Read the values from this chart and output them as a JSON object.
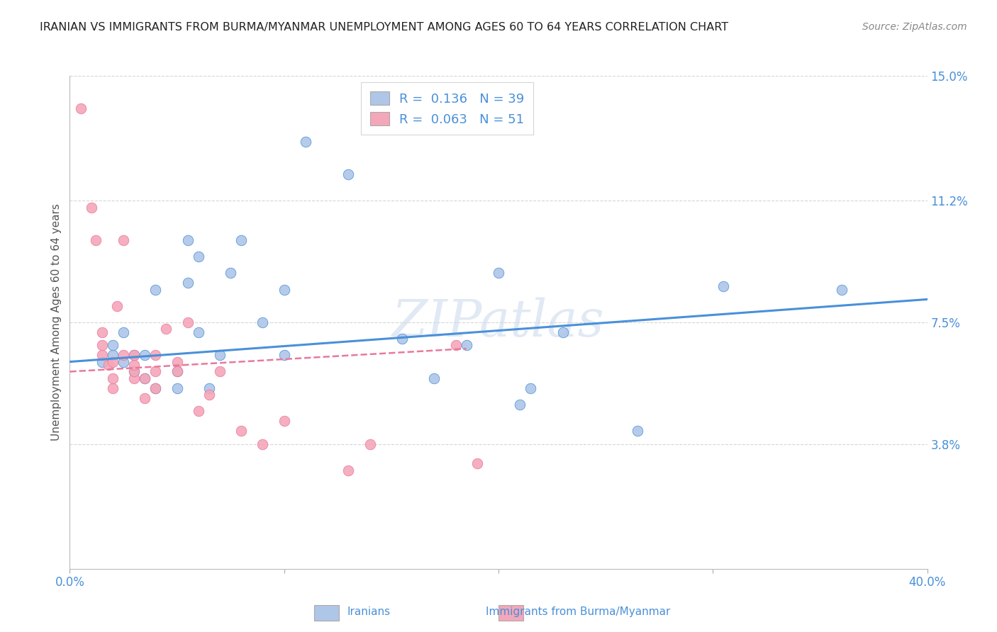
{
  "title": "IRANIAN VS IMMIGRANTS FROM BURMA/MYANMAR UNEMPLOYMENT AMONG AGES 60 TO 64 YEARS CORRELATION CHART",
  "source": "Source: ZipAtlas.com",
  "ylabel": "Unemployment Among Ages 60 to 64 years",
  "xlim": [
    0.0,
    0.4
  ],
  "ylim": [
    0.0,
    0.15
  ],
  "right_ytick_vals": [
    0.0,
    0.038,
    0.075,
    0.112,
    0.15
  ],
  "right_ytick_labels": [
    "",
    "3.8%",
    "7.5%",
    "11.2%",
    "15.0%"
  ],
  "xtick_vals": [
    0.0,
    0.1,
    0.2,
    0.3,
    0.4
  ],
  "xtick_labels": [
    "0.0%",
    "",
    "",
    "",
    "40.0%"
  ],
  "legend_R_blue": "0.136",
  "legend_N_blue": "39",
  "legend_R_pink": "0.063",
  "legend_N_pink": "51",
  "color_blue": "#aec6e8",
  "color_pink": "#f4a7b9",
  "line_blue": "#4a90d9",
  "line_pink": "#e8799a",
  "blue_scatter_x": [
    0.015,
    0.02,
    0.02,
    0.025,
    0.025,
    0.03,
    0.03,
    0.035,
    0.035,
    0.04,
    0.04,
    0.05,
    0.05,
    0.055,
    0.055,
    0.06,
    0.06,
    0.065,
    0.07,
    0.075,
    0.08,
    0.09,
    0.1,
    0.1,
    0.11,
    0.13,
    0.155,
    0.17,
    0.185,
    0.2,
    0.21,
    0.215,
    0.23,
    0.265,
    0.305,
    0.36
  ],
  "blue_scatter_y": [
    0.063,
    0.065,
    0.068,
    0.063,
    0.072,
    0.06,
    0.065,
    0.058,
    0.065,
    0.055,
    0.085,
    0.055,
    0.06,
    0.1,
    0.087,
    0.072,
    0.095,
    0.055,
    0.065,
    0.09,
    0.1,
    0.075,
    0.065,
    0.085,
    0.13,
    0.12,
    0.07,
    0.058,
    0.068,
    0.09,
    0.05,
    0.055,
    0.072,
    0.042,
    0.086,
    0.085
  ],
  "pink_scatter_x": [
    0.005,
    0.01,
    0.012,
    0.015,
    0.015,
    0.015,
    0.018,
    0.02,
    0.02,
    0.02,
    0.022,
    0.025,
    0.025,
    0.03,
    0.03,
    0.03,
    0.03,
    0.035,
    0.035,
    0.04,
    0.04,
    0.04,
    0.045,
    0.05,
    0.05,
    0.055,
    0.06,
    0.065,
    0.07,
    0.08,
    0.09,
    0.1,
    0.13,
    0.14,
    0.18,
    0.19
  ],
  "pink_scatter_y": [
    0.14,
    0.11,
    0.1,
    0.065,
    0.068,
    0.072,
    0.062,
    0.055,
    0.058,
    0.063,
    0.08,
    0.065,
    0.1,
    0.058,
    0.06,
    0.062,
    0.065,
    0.052,
    0.058,
    0.055,
    0.06,
    0.065,
    0.073,
    0.063,
    0.06,
    0.075,
    0.048,
    0.053,
    0.06,
    0.042,
    0.038,
    0.045,
    0.03,
    0.038,
    0.068,
    0.032
  ],
  "blue_line_x": [
    0.0,
    0.4
  ],
  "blue_line_y": [
    0.063,
    0.082
  ],
  "pink_line_x": [
    0.0,
    0.185
  ],
  "pink_line_y": [
    0.06,
    0.067
  ],
  "watermark": "ZIPatlas",
  "background_color": "#ffffff",
  "grid_color": "#cccccc"
}
